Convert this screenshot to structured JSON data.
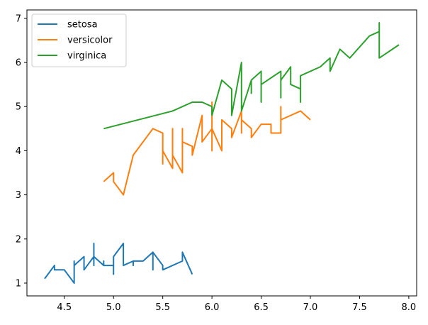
{
  "chart_data": {
    "type": "line",
    "title": "",
    "xlabel": "",
    "ylabel": "",
    "xlim": [
      4.12,
      8.08
    ],
    "ylim": [
      0.71,
      7.19
    ],
    "xticks": [
      4.5,
      5.0,
      5.5,
      6.0,
      6.5,
      7.0,
      7.5,
      8.0
    ],
    "xtick_labels": [
      "4.5",
      "5.0",
      "5.5",
      "6.0",
      "6.5",
      "7.0",
      "7.5",
      "8.0"
    ],
    "yticks": [
      1,
      2,
      3,
      4,
      5,
      6,
      7
    ],
    "ytick_labels": [
      "1",
      "2",
      "3",
      "4",
      "5",
      "6",
      "7"
    ],
    "grid": false,
    "legend_position": "top-left",
    "series": [
      {
        "name": "setosa",
        "color": "#1f77b4",
        "x": [
          4.3,
          4.4,
          4.4,
          4.4,
          4.5,
          4.6,
          4.6,
          4.6,
          4.6,
          4.7,
          4.7,
          4.8,
          4.8,
          4.8,
          4.8,
          4.8,
          4.9,
          4.9,
          4.9,
          4.9,
          5.0,
          5.0,
          5.0,
          5.0,
          5.0,
          5.0,
          5.0,
          5.0,
          5.1,
          5.1,
          5.1,
          5.1,
          5.1,
          5.1,
          5.1,
          5.1,
          5.1,
          5.2,
          5.2,
          5.2,
          5.3,
          5.4,
          5.4,
          5.4,
          5.4,
          5.4,
          5.5,
          5.5,
          5.7,
          5.7,
          5.8
        ],
        "y": [
          1.1,
          1.4,
          1.3,
          1.3,
          1.3,
          1.0,
          1.5,
          1.4,
          1.4,
          1.6,
          1.3,
          1.6,
          1.4,
          1.6,
          1.9,
          1.6,
          1.4,
          1.5,
          1.5,
          1.4,
          1.4,
          1.5,
          1.5,
          1.6,
          1.6,
          1.4,
          1.2,
          1.6,
          1.9,
          1.5,
          1.4,
          1.7,
          1.5,
          1.4,
          1.5,
          1.4,
          1.4,
          1.5,
          1.4,
          1.5,
          1.5,
          1.7,
          1.3,
          1.5,
          1.5,
          1.7,
          1.4,
          1.3,
          1.5,
          1.7,
          1.2
        ]
      },
      {
        "name": "versicolor",
        "color": "#ff7f0e",
        "x": [
          4.9,
          5.0,
          5.0,
          5.1,
          5.2,
          5.4,
          5.5,
          5.5,
          5.5,
          5.5,
          5.5,
          5.6,
          5.6,
          5.6,
          5.6,
          5.6,
          5.7,
          5.7,
          5.7,
          5.7,
          5.7,
          5.8,
          5.8,
          5.9,
          5.9,
          6.0,
          6.0,
          6.0,
          6.0,
          6.1,
          6.1,
          6.1,
          6.1,
          6.2,
          6.2,
          6.3,
          6.3,
          6.3,
          6.4,
          6.4,
          6.5,
          6.6,
          6.6,
          6.7,
          6.7,
          6.7,
          6.8,
          6.9,
          7.0
        ],
        "y": [
          3.3,
          3.5,
          3.3,
          3.0,
          3.9,
          4.5,
          4.4,
          4.0,
          3.7,
          3.8,
          4.0,
          3.6,
          4.5,
          4.1,
          4.2,
          3.9,
          3.5,
          4.5,
          4.2,
          4.1,
          4.2,
          4.1,
          3.9,
          4.8,
          4.2,
          4.5,
          4.0,
          5.1,
          4.5,
          4.0,
          4.7,
          4.6,
          4.7,
          4.5,
          4.3,
          4.9,
          4.4,
          4.7,
          4.5,
          4.3,
          4.6,
          4.6,
          4.4,
          4.4,
          5.0,
          4.7,
          4.8,
          4.9,
          4.7
        ]
      },
      {
        "name": "virginica",
        "color": "#2ca02c",
        "x": [
          4.9,
          5.6,
          5.7,
          5.8,
          5.8,
          5.8,
          5.9,
          6.0,
          6.0,
          6.1,
          6.1,
          6.2,
          6.2,
          6.3,
          6.3,
          6.3,
          6.3,
          6.3,
          6.3,
          6.4,
          6.4,
          6.4,
          6.4,
          6.5,
          6.5,
          6.5,
          6.5,
          6.7,
          6.7,
          6.7,
          6.7,
          6.7,
          6.8,
          6.8,
          6.9,
          6.9,
          6.9,
          7.1,
          7.2,
          7.2,
          7.2,
          7.3,
          7.4,
          7.6,
          7.7,
          7.7,
          7.7,
          7.7,
          7.9
        ],
        "y": [
          4.5,
          4.9,
          5.0,
          5.1,
          5.1,
          5.1,
          5.1,
          5.0,
          4.8,
          5.6,
          5.6,
          5.4,
          4.8,
          6.0,
          5.6,
          5.6,
          5.1,
          5.0,
          4.9,
          5.6,
          5.3,
          5.5,
          5.6,
          5.8,
          5.1,
          5.2,
          5.5,
          5.8,
          5.6,
          5.7,
          5.2,
          5.6,
          5.9,
          5.5,
          5.4,
          5.1,
          5.7,
          5.9,
          6.1,
          6.0,
          5.8,
          6.3,
          6.1,
          6.6,
          6.7,
          6.9,
          6.7,
          6.1,
          6.4
        ]
      }
    ]
  }
}
